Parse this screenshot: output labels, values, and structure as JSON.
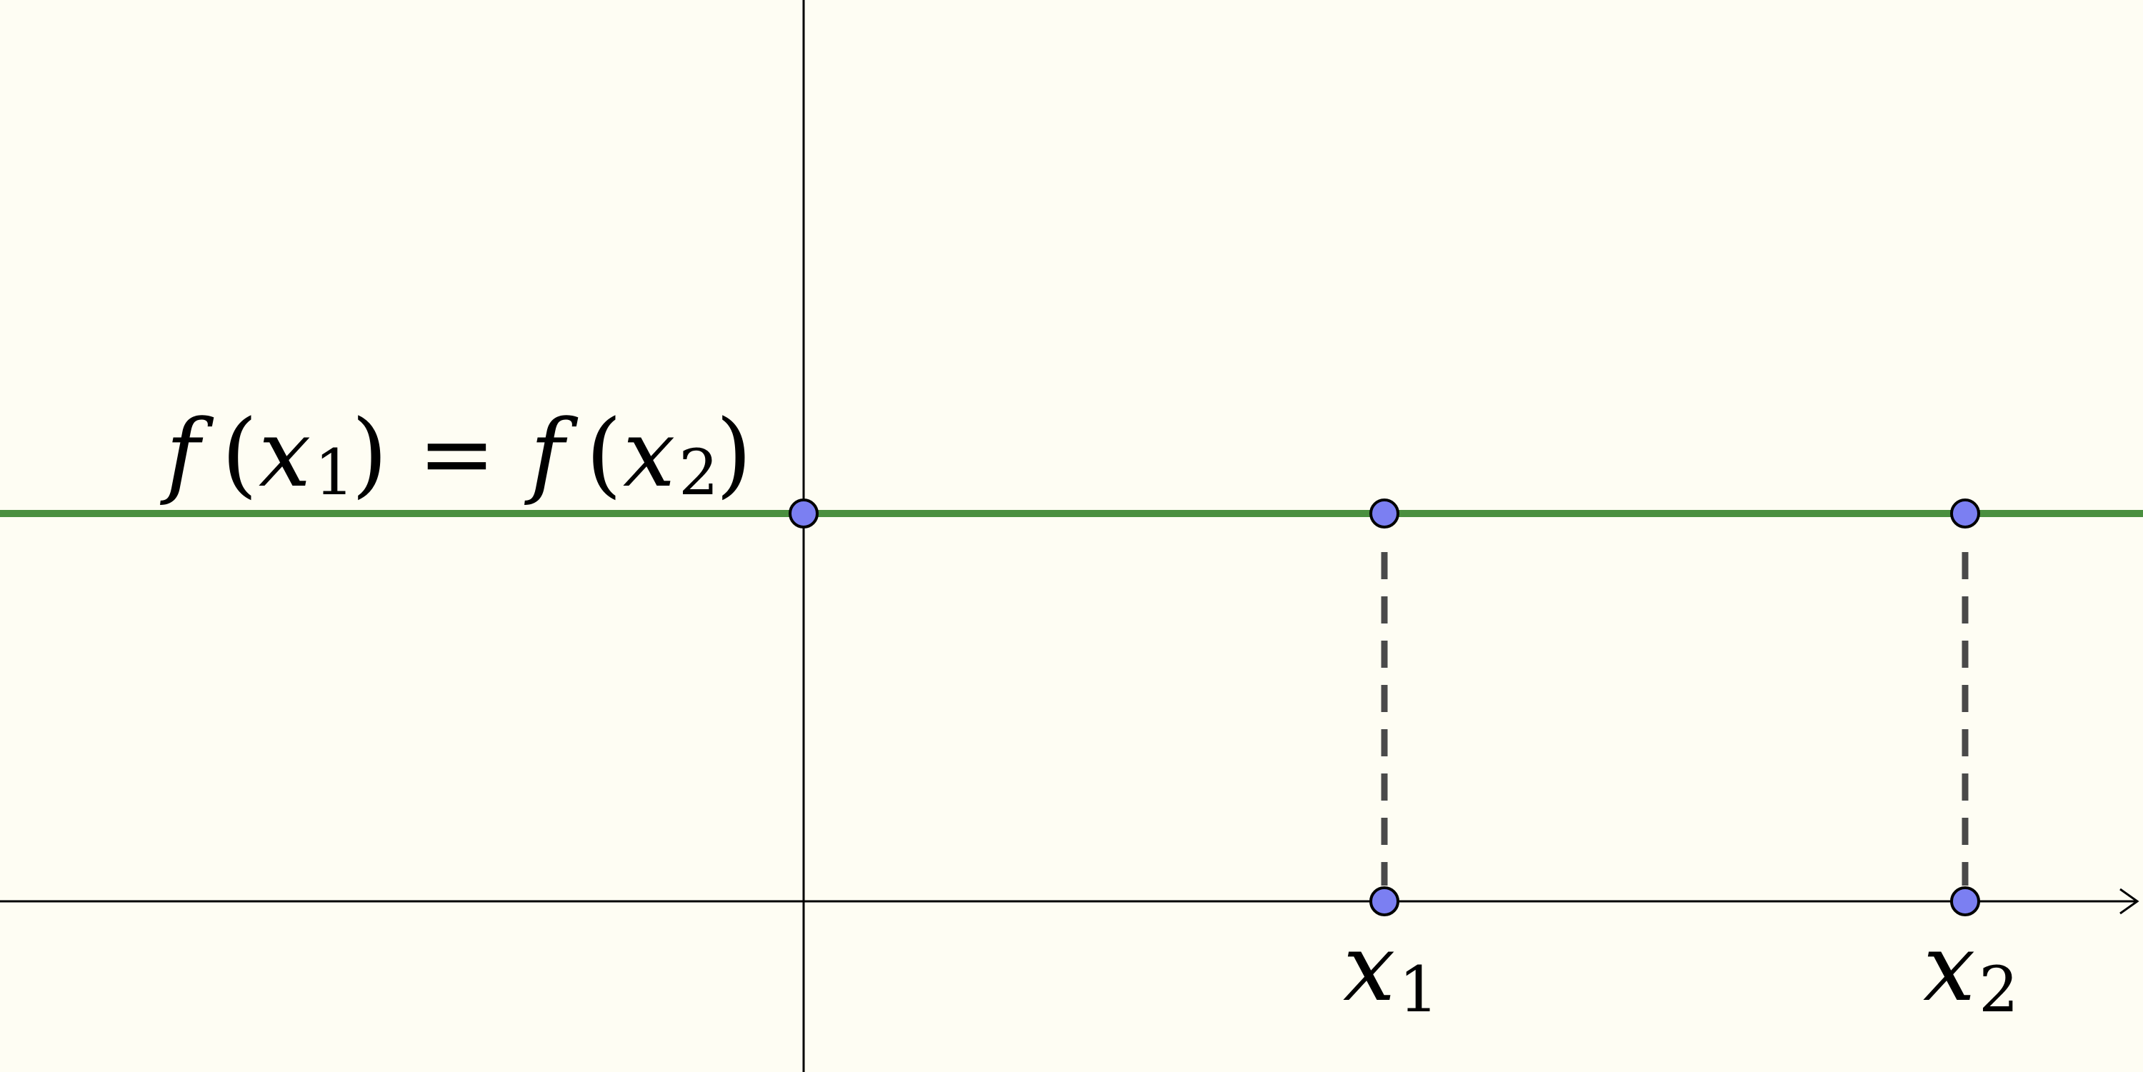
{
  "labels": {
    "equation": {
      "f1": "f",
      "open1": "(",
      "x1": "x",
      "sub1": "1",
      "close1": ")",
      "equals": "=",
      "f2": "f",
      "open2": "(",
      "x2": "x",
      "sub2": "2",
      "close2": ")"
    },
    "x1": {
      "base": "x",
      "sub": "1"
    },
    "x2": {
      "base": "x",
      "sub": "2"
    }
  },
  "colors": {
    "background": "#fefdf3",
    "axis": "#000000",
    "line": "#4a8f3f",
    "point_fill": "#7b7ff2",
    "point_stroke": "#000000",
    "dashed": "#4a4a4a"
  }
}
